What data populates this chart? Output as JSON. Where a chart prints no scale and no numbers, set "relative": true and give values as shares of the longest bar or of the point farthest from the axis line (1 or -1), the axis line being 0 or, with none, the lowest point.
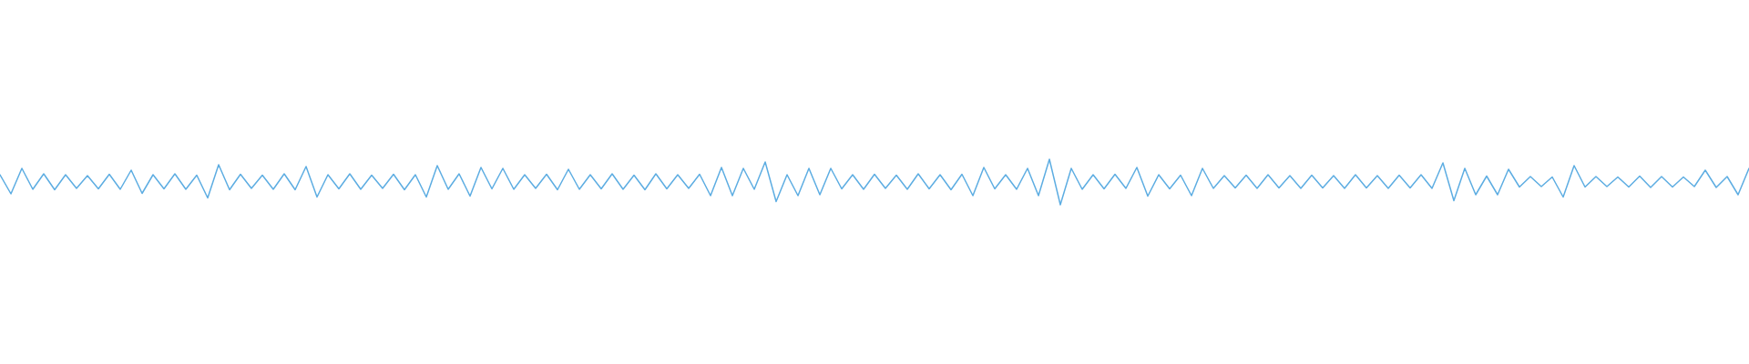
{
  "chart_data": {
    "type": "line",
    "relative": true,
    "marker": "none",
    "color": "#5dade2",
    "categories": [
      null,
      null,
      null,
      null,
      null,
      null,
      null,
      null,
      null,
      null,
      null,
      null,
      null,
      null,
      null,
      null,
      null,
      null,
      null,
      null,
      null,
      null,
      null,
      null,
      null,
      null,
      null,
      null,
      null,
      null,
      null,
      null,
      null,
      null,
      null,
      null,
      null,
      null,
      null,
      null,
      null,
      null,
      null,
      null,
      null,
      null,
      null,
      null,
      null,
      null,
      null,
      null,
      null,
      null,
      null,
      null,
      null,
      null,
      null,
      null,
      null,
      null,
      null,
      null,
      null,
      null,
      null,
      null,
      null,
      null,
      null,
      null,
      null,
      null,
      null,
      null,
      null,
      null,
      null,
      null,
      null,
      null,
      null,
      null,
      null,
      null,
      null,
      null,
      null,
      null,
      null,
      null,
      null,
      null,
      null,
      null,
      null,
      null,
      null,
      null,
      null,
      null,
      null,
      null,
      null,
      null,
      null,
      null,
      null,
      null,
      null,
      null,
      null,
      null,
      null,
      null,
      null,
      null,
      null,
      null,
      null,
      null,
      null,
      null,
      null,
      null,
      null,
      null,
      null,
      null,
      null,
      null,
      null,
      null,
      null,
      null,
      null,
      null,
      null,
      null,
      null,
      null,
      null,
      null,
      null,
      null,
      null,
      null,
      null,
      null,
      null,
      null,
      null,
      null,
      null,
      null,
      null,
      null,
      null,
      null,
      null
    ],
    "values": [
      0.66,
      0.24,
      0.8,
      0.34,
      0.68,
      0.33,
      0.66,
      0.36,
      0.64,
      0.35,
      0.67,
      0.34,
      0.76,
      0.25,
      0.66,
      0.35,
      0.68,
      0.34,
      0.65,
      0.15,
      0.88,
      0.33,
      0.67,
      0.36,
      0.65,
      0.34,
      0.68,
      0.33,
      0.84,
      0.17,
      0.66,
      0.35,
      0.68,
      0.34,
      0.65,
      0.36,
      0.67,
      0.33,
      0.66,
      0.17,
      0.86,
      0.34,
      0.68,
      0.19,
      0.82,
      0.35,
      0.8,
      0.34,
      0.66,
      0.36,
      0.67,
      0.33,
      0.78,
      0.34,
      0.66,
      0.35,
      0.68,
      0.34,
      0.65,
      0.33,
      0.68,
      0.35,
      0.66,
      0.36,
      0.67,
      0.2,
      0.82,
      0.2,
      0.8,
      0.34,
      0.94,
      0.07,
      0.66,
      0.2,
      0.8,
      0.22,
      0.8,
      0.35,
      0.66,
      0.34,
      0.67,
      0.36,
      0.65,
      0.34,
      0.68,
      0.35,
      0.66,
      0.33,
      0.67,
      0.2,
      0.82,
      0.35,
      0.66,
      0.34,
      0.8,
      0.2,
      1,
      0,
      0.8,
      0.34,
      0.66,
      0.35,
      0.67,
      0.36,
      0.82,
      0.19,
      0.66,
      0.35,
      0.65,
      0.2,
      0.8,
      0.36,
      0.64,
      0.37,
      0.65,
      0.36,
      0.66,
      0.37,
      0.64,
      0.36,
      0.65,
      0.37,
      0.64,
      0.36,
      0.66,
      0.37,
      0.64,
      0.36,
      0.65,
      0.37,
      0.66,
      0.36,
      0.92,
      0.09,
      0.8,
      0.22,
      0.63,
      0.22,
      0.78,
      0.39,
      0.62,
      0.4,
      0.61,
      0.17,
      0.86,
      0.39,
      0.62,
      0.4,
      0.61,
      0.39,
      0.63,
      0.38,
      0.62,
      0.39,
      0.61,
      0.4,
      0.76,
      0.38,
      0.62,
      0.22,
      0.8
    ]
  }
}
